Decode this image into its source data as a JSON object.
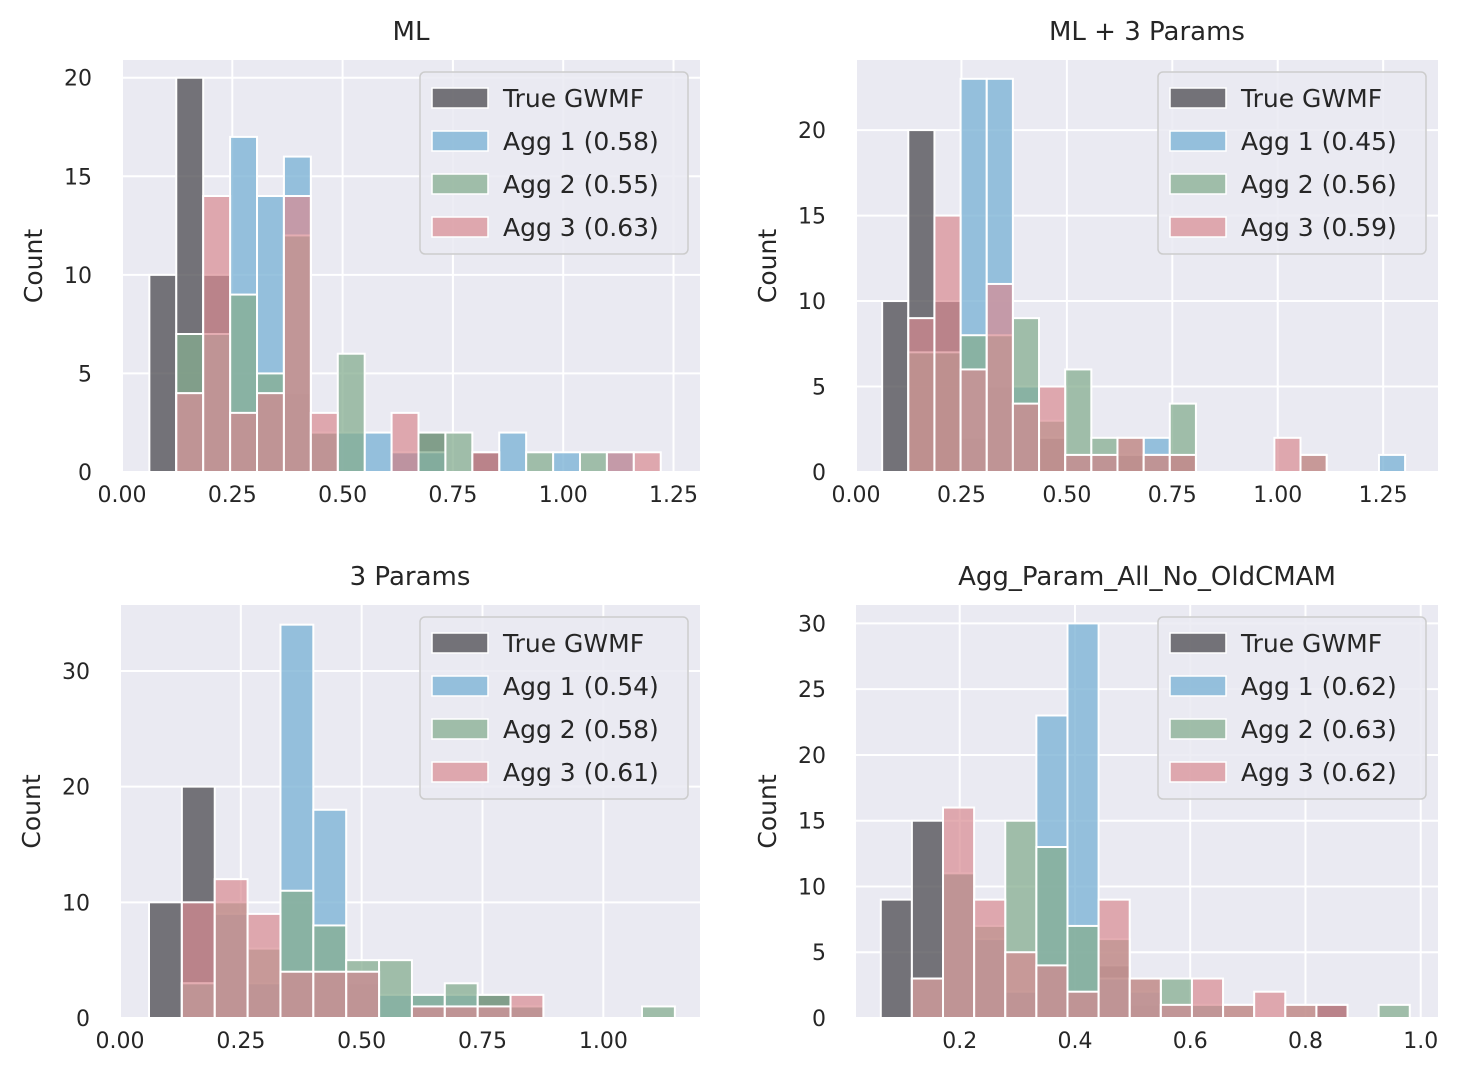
{
  "chart_data": [
    {
      "type": "histogram",
      "title": "ML",
      "ylabel": "Count",
      "xlim": [
        0,
        1.31
      ],
      "ylim": [
        0,
        20.9
      ],
      "xticks": [
        "0.00",
        "0.25",
        "0.50",
        "0.75",
        "1.00",
        "1.25"
      ],
      "yticks": [
        "0",
        "5",
        "10",
        "15",
        "20"
      ],
      "bin_edges": [
        0.062,
        0.123,
        0.184,
        0.245,
        0.306,
        0.367,
        0.428,
        0.489,
        0.55,
        0.611,
        0.672,
        0.733,
        0.794,
        0.855,
        0.916,
        0.977,
        1.038,
        1.099,
        1.16,
        1.221,
        1.282
      ],
      "series": [
        {
          "name": "True GWMF",
          "color": "#555459",
          "values": [
            10,
            20,
            10,
            3,
            4,
            4,
            2,
            0,
            0,
            1,
            2,
            0,
            1,
            0,
            0,
            0,
            0,
            0,
            0,
            0
          ]
        },
        {
          "name": "Agg 1 (0.58)",
          "color": "#7eb4d6",
          "values": [
            0,
            4,
            7,
            17,
            14,
            16,
            2,
            2,
            2,
            1,
            1,
            0,
            0,
            2,
            0,
            1,
            0,
            1,
            0,
            0
          ]
        },
        {
          "name": "Agg 2 (0.55)",
          "color": "#86ad90",
          "values": [
            0,
            7,
            7,
            9,
            5,
            12,
            2,
            6,
            0,
            0,
            2,
            2,
            0,
            0,
            1,
            0,
            1,
            0,
            0,
            0
          ]
        },
        {
          "name": "Agg 3 (0.63)",
          "color": "#d98a92",
          "values": [
            0,
            4,
            14,
            3,
            4,
            14,
            3,
            0,
            0,
            3,
            0,
            0,
            1,
            0,
            0,
            0,
            0,
            1,
            1,
            0
          ]
        }
      ],
      "legend": "top-right",
      "grid": true
    },
    {
      "type": "histogram",
      "title": "ML + 3 Params",
      "ylabel": "Count",
      "xlim": [
        0,
        1.38
      ],
      "ylim": [
        0,
        24.1
      ],
      "xticks": [
        "0.00",
        "0.25",
        "0.50",
        "0.75",
        "1.00",
        "1.25"
      ],
      "yticks": [
        "0",
        "5",
        "10",
        "15",
        "20"
      ],
      "bin_edges": [
        0.062,
        0.124,
        0.186,
        0.248,
        0.31,
        0.372,
        0.434,
        0.496,
        0.558,
        0.62,
        0.682,
        0.744,
        0.806,
        0.868,
        0.93,
        0.992,
        1.054,
        1.116,
        1.178,
        1.24,
        1.302
      ],
      "series": [
        {
          "name": "True GWMF",
          "color": "#555459",
          "values": [
            10,
            20,
            10,
            2,
            5,
            4,
            2,
            1,
            1,
            1,
            1,
            1,
            0,
            0,
            0,
            0,
            0,
            0,
            0,
            0
          ]
        },
        {
          "name": "Agg 1 (0.45)",
          "color": "#7eb4d6",
          "values": [
            0,
            0,
            0,
            23,
            23,
            5,
            0,
            1,
            1,
            0,
            2,
            0,
            0,
            0,
            0,
            0,
            0,
            0,
            0,
            1
          ]
        },
        {
          "name": "Agg 2 (0.56)",
          "color": "#86ad90",
          "values": [
            0,
            7,
            7,
            8,
            8,
            9,
            3,
            6,
            2,
            2,
            1,
            4,
            0,
            0,
            0,
            0,
            1,
            0,
            0,
            0
          ]
        },
        {
          "name": "Agg 3 (0.59)",
          "color": "#d98a92",
          "values": [
            0,
            9,
            15,
            6,
            11,
            4,
            5,
            1,
            1,
            2,
            1,
            1,
            0,
            0,
            0,
            2,
            1,
            0,
            0,
            0
          ]
        }
      ],
      "legend": "top-right",
      "grid": true
    },
    {
      "type": "histogram",
      "title": "3 Params",
      "ylabel": "Count",
      "xlim": [
        0,
        1.2
      ],
      "ylim": [
        0,
        35.7
      ],
      "xticks": [
        "0.00",
        "0.25",
        "0.50",
        "0.75",
        "1.00"
      ],
      "yticks": [
        "0",
        "10",
        "20",
        "30"
      ],
      "bin_edges": [
        0.06,
        0.128,
        0.196,
        0.264,
        0.332,
        0.4,
        0.468,
        0.536,
        0.604,
        0.672,
        0.74,
        0.808,
        0.876,
        0.944,
        1.012,
        1.08,
        1.148
      ],
      "series": [
        {
          "name": "True GWMF",
          "color": "#555459",
          "values": [
            10,
            20,
            9,
            3,
            4,
            4,
            3,
            0,
            1,
            1,
            2,
            1,
            0,
            0,
            0,
            0
          ]
        },
        {
          "name": "Agg 1 (0.54)",
          "color": "#7eb4d6",
          "values": [
            0,
            3,
            9,
            3,
            34,
            18,
            4,
            2,
            2,
            2,
            1,
            1,
            0,
            0,
            0,
            0
          ]
        },
        {
          "name": "Agg 2 (0.58)",
          "color": "#86ad90",
          "values": [
            0,
            3,
            10,
            6,
            11,
            8,
            5,
            5,
            2,
            3,
            2,
            1,
            0,
            0,
            0,
            1
          ]
        },
        {
          "name": "Agg 3 (0.61)",
          "color": "#d98a92",
          "values": [
            0,
            10,
            12,
            9,
            4,
            4,
            4,
            0,
            1,
            1,
            1,
            2,
            0,
            0,
            0,
            0
          ]
        }
      ],
      "legend": "top-right",
      "grid": true
    },
    {
      "type": "histogram",
      "title": "Agg_Param_All_No_OldCMAM",
      "ylabel": "Count",
      "xlim": [
        0.02,
        1.03
      ],
      "ylim": [
        0,
        31.4
      ],
      "xticks": [
        "0.2",
        "0.4",
        "0.6",
        "0.8",
        "1.0"
      ],
      "xtick_values": [
        0.2,
        0.4,
        0.6,
        0.8,
        1.0
      ],
      "yticks": [
        "0",
        "5",
        "10",
        "15",
        "20",
        "25",
        "30"
      ],
      "bin_edges": [
        0.063,
        0.117,
        0.171,
        0.225,
        0.279,
        0.333,
        0.387,
        0.441,
        0.495,
        0.549,
        0.603,
        0.657,
        0.711,
        0.765,
        0.819,
        0.873,
        0.927,
        0.981
      ],
      "series": [
        {
          "name": "True GWMF",
          "color": "#555459",
          "values": [
            9,
            15,
            11,
            6,
            2,
            4,
            2,
            4,
            1,
            0,
            0,
            0,
            0,
            0,
            1,
            0,
            0
          ]
        },
        {
          "name": "Agg 1 (0.62)",
          "color": "#7eb4d6",
          "values": [
            0,
            3,
            11,
            6,
            2,
            23,
            30,
            3,
            2,
            1,
            1,
            0,
            0,
            0,
            0,
            0,
            0
          ]
        },
        {
          "name": "Agg 2 (0.63)",
          "color": "#86ad90",
          "values": [
            0,
            3,
            11,
            7,
            15,
            13,
            7,
            6,
            3,
            3,
            1,
            1,
            0,
            1,
            0,
            0,
            1
          ]
        },
        {
          "name": "Agg 3 (0.62)",
          "color": "#d98a92",
          "values": [
            0,
            3,
            16,
            9,
            5,
            4,
            2,
            9,
            3,
            1,
            3,
            1,
            2,
            1,
            1,
            0,
            0
          ]
        }
      ],
      "legend": "top-right",
      "grid": true
    }
  ]
}
